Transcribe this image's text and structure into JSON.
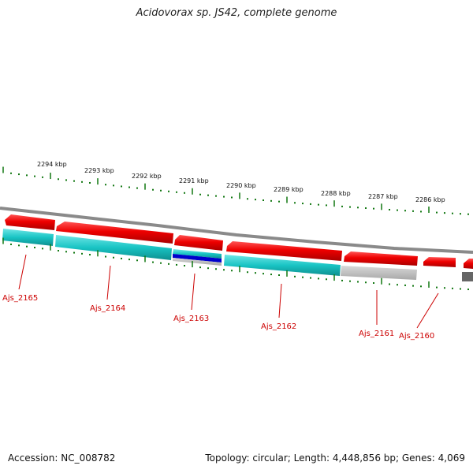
{
  "title": "Acidovorax sp. JS42, complete genome",
  "footer": {
    "accession": "Accession: NC_008782",
    "summary": "Topology: circular; Length: 4,448,856 bp; Genes: 4,069"
  },
  "colors": {
    "gene": "#ee0000",
    "cds": "#19bfbf",
    "cds_dark": "#0000cc",
    "backbone": "#888888",
    "tick": "#117711",
    "label": "#cc0000",
    "gray_feature": "#bbbbbb"
  },
  "chart_data": {
    "type": "genome-map",
    "strand_direction": "reverse",
    "scale_labels": [
      "2294 kbp",
      "2293 kbp",
      "2292 kbp",
      "2291 kbp",
      "2290 kbp",
      "2289 kbp",
      "2288 kbp",
      "2287 kbp",
      "2286 kbp"
    ],
    "gene_labels": [
      "Ajs_2165",
      "Ajs_2164",
      "Ajs_2163",
      "Ajs_2162",
      "Ajs_2161",
      "Ajs_2160"
    ]
  }
}
